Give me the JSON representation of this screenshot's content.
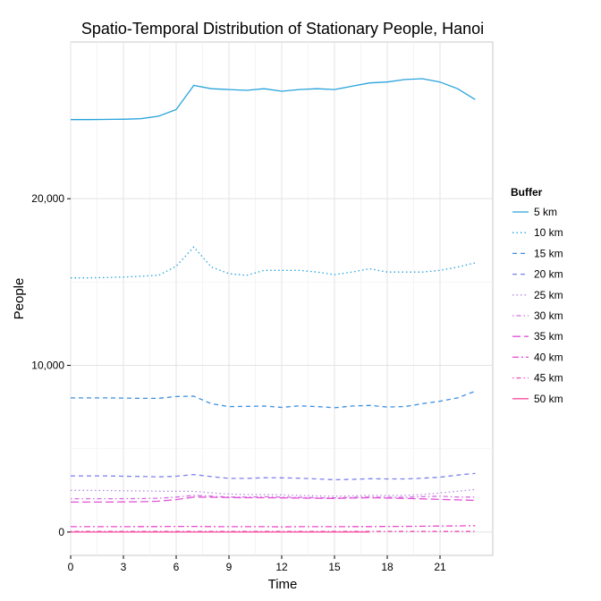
{
  "chart_data": {
    "type": "line",
    "title": "Spatio-Temporal Distribution of Stationary People, Hanoi",
    "xlabel": "Time",
    "ylabel": "People",
    "xlim": [
      0,
      24
    ],
    "ylim": [
      -1400,
      29400
    ],
    "x_ticks": [
      0,
      3,
      6,
      9,
      12,
      15,
      18,
      21
    ],
    "x_tick_labels": [
      "0",
      "3",
      "6",
      "9",
      "12",
      "15",
      "18",
      "21"
    ],
    "y_ticks": [
      0,
      10000,
      20000
    ],
    "y_tick_labels": [
      "0",
      "10,000",
      "20,000"
    ],
    "grid": true,
    "legend_title": "Buffer",
    "legend_position": "right",
    "x": [
      0,
      1,
      2,
      3,
      4,
      5,
      6,
      7,
      8,
      9,
      10,
      11,
      12,
      13,
      14,
      15,
      16,
      17,
      18,
      19,
      20,
      21,
      22,
      23
    ],
    "series": [
      {
        "name": "5 km",
        "color": "#29a3dc",
        "dash": "solid",
        "values": [
          24750,
          24750,
          24760,
          24770,
          24800,
          24950,
          25350,
          26800,
          26600,
          26550,
          26500,
          26600,
          26450,
          26550,
          26600,
          26550,
          26750,
          26950,
          27000,
          27150,
          27200,
          27000,
          26600,
          25950
        ]
      },
      {
        "name": "10 km",
        "color": "#29a3dc",
        "dash": "dotted",
        "values": [
          15250,
          15250,
          15270,
          15300,
          15350,
          15400,
          15950,
          17100,
          15900,
          15500,
          15400,
          15700,
          15700,
          15700,
          15600,
          15450,
          15600,
          15800,
          15600,
          15600,
          15600,
          15700,
          15900,
          16150
        ]
      },
      {
        "name": "15 km",
        "color": "#3f8fe0",
        "dash": "dashed",
        "values": [
          8050,
          8050,
          8050,
          8040,
          8020,
          8020,
          8130,
          8150,
          7700,
          7530,
          7540,
          7560,
          7480,
          7570,
          7530,
          7460,
          7560,
          7600,
          7500,
          7530,
          7700,
          7850,
          8050,
          8450
        ]
      },
      {
        "name": "20 km",
        "color": "#7b80f0",
        "dash": "dashed",
        "values": [
          3370,
          3370,
          3370,
          3350,
          3340,
          3310,
          3350,
          3450,
          3330,
          3220,
          3220,
          3260,
          3250,
          3230,
          3190,
          3140,
          3160,
          3200,
          3190,
          3190,
          3230,
          3290,
          3420,
          3520
        ]
      },
      {
        "name": "25 km",
        "color": "#b58ae0",
        "dash": "dotted",
        "values": [
          2500,
          2500,
          2490,
          2480,
          2470,
          2450,
          2450,
          2450,
          2350,
          2280,
          2250,
          2250,
          2230,
          2200,
          2170,
          2150,
          2170,
          2200,
          2190,
          2200,
          2250,
          2350,
          2450,
          2550
        ]
      },
      {
        "name": "30 km",
        "color": "#d46ee6",
        "dash": "dashdot",
        "values": [
          2000,
          2000,
          2000,
          2000,
          2010,
          2030,
          2100,
          2200,
          2150,
          2100,
          2100,
          2120,
          2100,
          2080,
          2060,
          2050,
          2080,
          2100,
          2080,
          2090,
          2120,
          2150,
          2100,
          2100
        ]
      },
      {
        "name": "35 km",
        "color": "#e452d8",
        "dash": "longdash",
        "values": [
          1800,
          1800,
          1800,
          1810,
          1820,
          1850,
          1950,
          2100,
          2090,
          2070,
          2060,
          2060,
          2050,
          2040,
          2030,
          2020,
          2040,
          2060,
          2040,
          2020,
          1990,
          1960,
          1930,
          1900
        ]
      },
      {
        "name": "40 km",
        "color": "#ec48cc",
        "dash": "twodash",
        "values": [
          320,
          320,
          320,
          320,
          330,
          330,
          340,
          340,
          330,
          320,
          320,
          320,
          310,
          320,
          320,
          320,
          330,
          330,
          340,
          340,
          350,
          360,
          370,
          380
        ]
      },
      {
        "name": "45 km",
        "color": "#f04fb8",
        "dash": "dashdot",
        "values": [
          40,
          40,
          40,
          40,
          40,
          40,
          40,
          40,
          40,
          40,
          40,
          40,
          40,
          40,
          40,
          40,
          40,
          40,
          40,
          40,
          40,
          40,
          40,
          40
        ]
      },
      {
        "name": "50 km",
        "color": "#f551a0",
        "dash": "solid",
        "values": [
          0,
          0,
          0,
          0,
          0,
          0,
          0,
          0,
          0,
          0,
          0,
          0,
          0,
          0,
          0,
          0,
          0,
          0,
          null,
          null,
          null,
          null,
          null,
          null
        ]
      }
    ]
  }
}
